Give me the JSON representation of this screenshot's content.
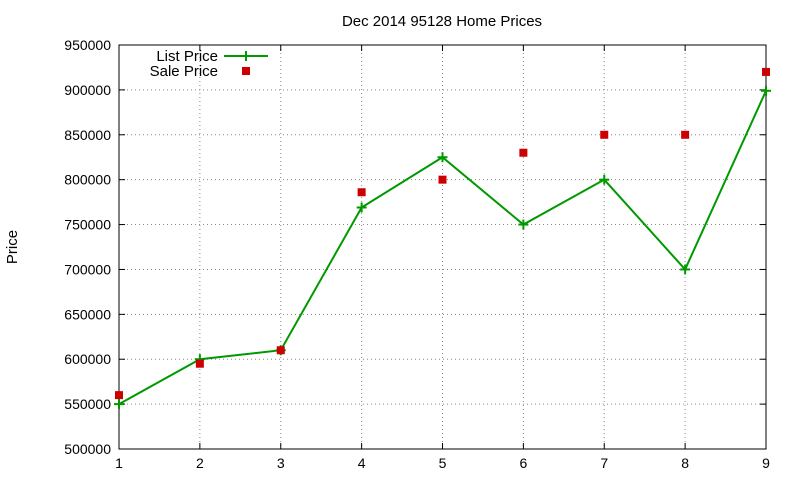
{
  "chart_data": {
    "type": "line",
    "title": "Dec 2014 95128 Home Prices",
    "xlabel": "",
    "ylabel": "Price",
    "xlim": [
      1,
      9
    ],
    "ylim": [
      500000,
      950000
    ],
    "x_ticks": [
      1,
      2,
      3,
      4,
      5,
      6,
      7,
      8,
      9
    ],
    "y_ticks": [
      500000,
      550000,
      600000,
      650000,
      700000,
      750000,
      800000,
      850000,
      900000,
      950000
    ],
    "grid": true,
    "legend_position": "top-left",
    "x": [
      1,
      2,
      3,
      4,
      5,
      6,
      7,
      8,
      9
    ],
    "series": [
      {
        "name": "List Price",
        "style": "line-points",
        "marker": "plus",
        "color": "#009900",
        "values": [
          550000,
          600000,
          610000,
          769000,
          825000,
          750000,
          800000,
          700000,
          899000
        ]
      },
      {
        "name": "Sale Price",
        "style": "points",
        "marker": "square",
        "color": "#cc0000",
        "values": [
          560000,
          595000,
          610000,
          786000,
          800000,
          830000,
          850000,
          850000,
          920000
        ]
      }
    ]
  }
}
